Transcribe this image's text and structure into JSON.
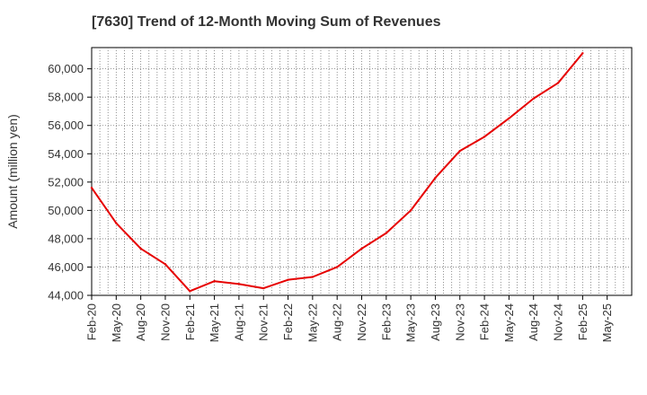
{
  "chart_data": {
    "type": "line",
    "title": "[7630]  Trend of 12-Month Moving Sum of Revenues",
    "xlabel": "",
    "ylabel": "Amount (million yen)",
    "ylim": [
      44000,
      61500
    ],
    "yticks": [
      44000,
      46000,
      48000,
      50000,
      52000,
      54000,
      56000,
      58000,
      60000
    ],
    "ytick_labels": [
      "44,000",
      "46,000",
      "48,000",
      "50,000",
      "52,000",
      "54,000",
      "56,000",
      "58,000",
      "60,000"
    ],
    "xtick_labels": [
      "Feb-20",
      "May-20",
      "Aug-20",
      "Nov-20",
      "Feb-21",
      "May-21",
      "Aug-21",
      "Nov-21",
      "Feb-22",
      "May-22",
      "Aug-22",
      "Nov-22",
      "Feb-23",
      "May-23",
      "Aug-23",
      "Nov-23",
      "Feb-24",
      "May-24",
      "Aug-24",
      "Nov-24",
      "Feb-25",
      "May-25"
    ],
    "grid": true,
    "series": [
      {
        "color": "#e60000",
        "x": [
          "Feb-20",
          "May-20",
          "Aug-20",
          "Nov-20",
          "Feb-21",
          "May-21",
          "Aug-21",
          "Nov-21",
          "Feb-22",
          "May-22",
          "Aug-22",
          "Nov-22",
          "Feb-23",
          "May-23",
          "Aug-23",
          "Nov-23",
          "Feb-24",
          "May-24",
          "Aug-24",
          "Nov-24",
          "Feb-25"
        ],
        "values": [
          51600,
          49100,
          47300,
          46200,
          44300,
          45000,
          44800,
          44500,
          45100,
          45300,
          46000,
          47300,
          48400,
          50000,
          52300,
          54200,
          55200,
          56500,
          57900,
          59000,
          61100
        ]
      }
    ]
  }
}
